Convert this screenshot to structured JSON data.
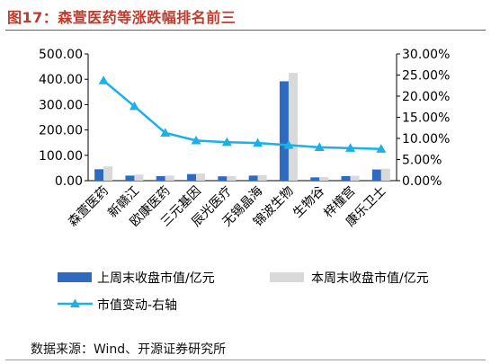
{
  "figure": {
    "title": "图17：森萱医药等涨跌幅排名前三",
    "source": "数据来源：Wind、开源证券研究所"
  },
  "chart_data": {
    "type": "bar",
    "categories": [
      "森萱医药",
      "新赣江",
      "欧康医药",
      "三元基因",
      "辰光医疗",
      "无锡晶海",
      "锦波生物",
      "生物谷",
      "梓橦宫",
      "康乐卫士"
    ],
    "series": [
      {
        "name": "上周末收盘市值/亿元",
        "type": "bar",
        "axis": "left",
        "color": "#2e6bc0",
        "values": [
          45,
          20,
          18,
          26,
          17,
          20,
          392,
          13,
          18,
          44
        ]
      },
      {
        "name": "本周末收盘市值/亿元",
        "type": "bar",
        "axis": "left",
        "color": "#d9d9d9",
        "values": [
          56,
          24,
          20,
          28,
          18,
          22,
          425,
          14,
          19,
          47
        ]
      },
      {
        "name": "市值变动-右轴",
        "type": "line",
        "axis": "right",
        "color": "#1ab0e8",
        "marker": "triangle",
        "values": [
          0.237,
          0.176,
          0.113,
          0.095,
          0.091,
          0.089,
          0.084,
          0.079,
          0.077,
          0.075
        ]
      }
    ],
    "y_left": {
      "min": 0,
      "max": 500,
      "ticks": [
        "0.00",
        "100.00",
        "200.00",
        "300.00",
        "400.00",
        "500.00"
      ]
    },
    "y_right": {
      "min": 0,
      "max": 0.3,
      "ticks": [
        "0.00%",
        "5.00%",
        "10.00%",
        "15.00%",
        "20.00%",
        "25.00%",
        "30.00%"
      ]
    },
    "legend_position": "bottom",
    "grid": false
  }
}
